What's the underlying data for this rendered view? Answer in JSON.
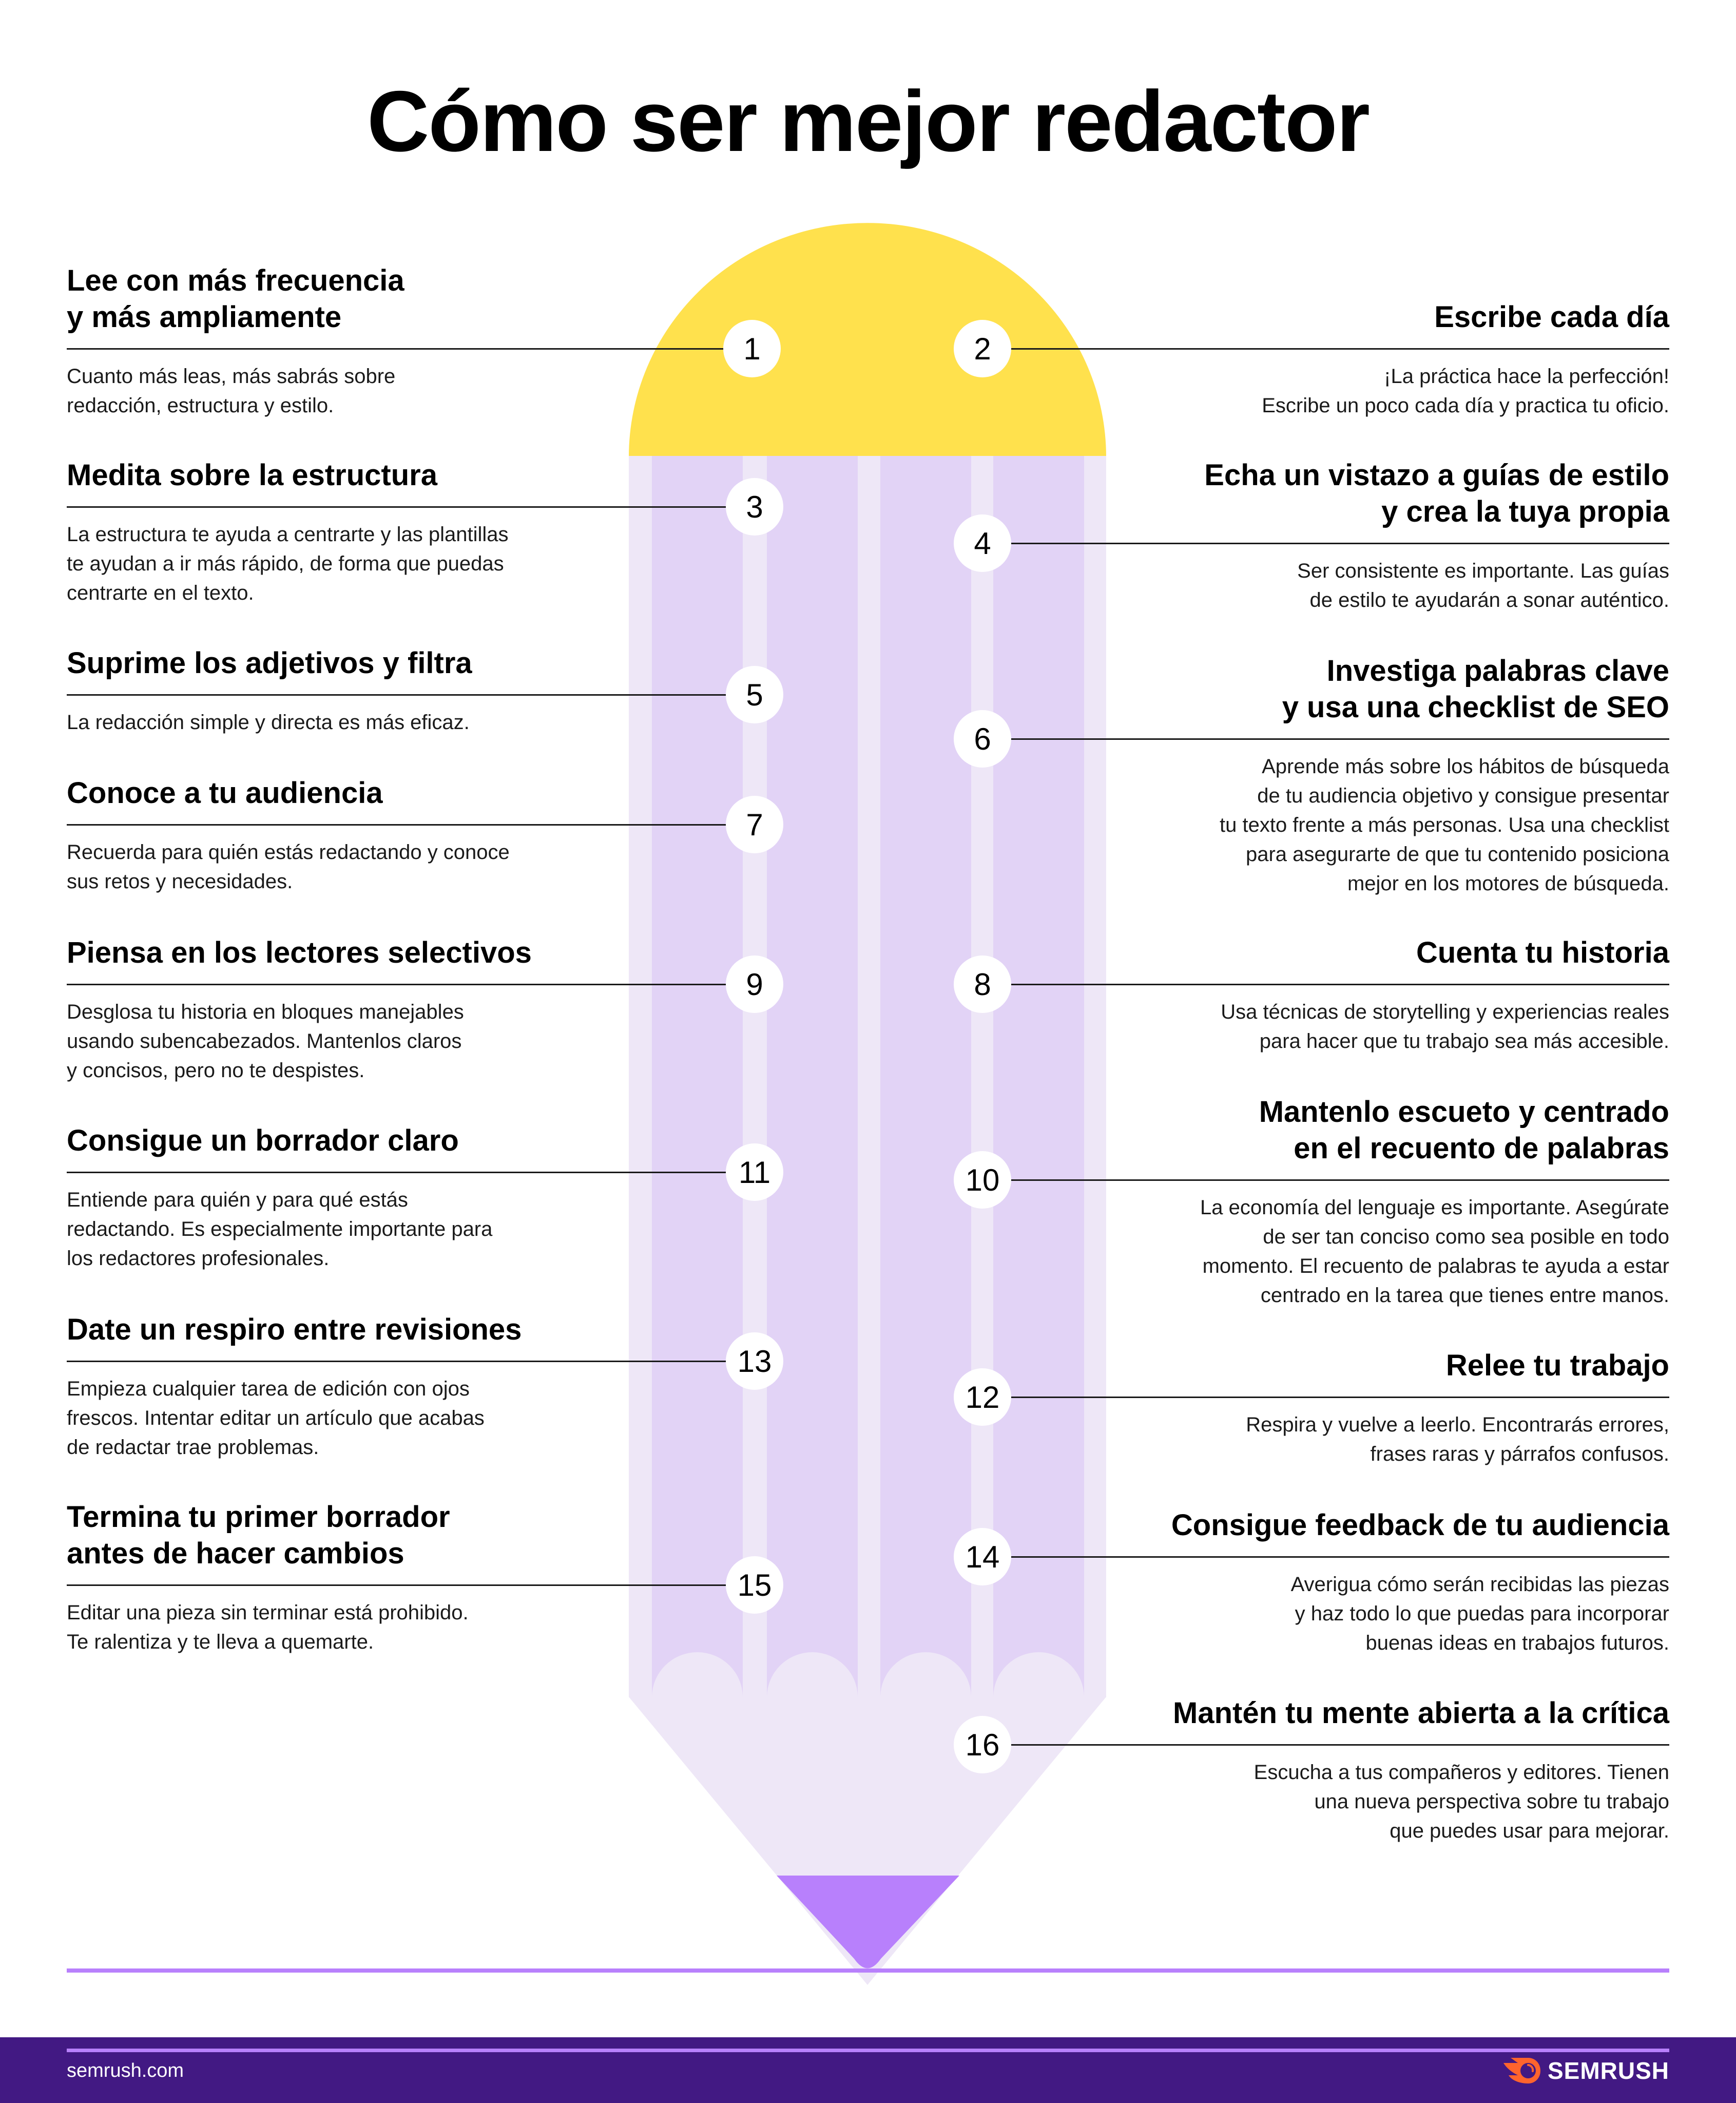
{
  "title": "Cómo ser mejor redactor",
  "colors": {
    "eraser": "#FFE14D",
    "stripe_dark": "#E2D3F6",
    "stripe_light": "#EEE7F7",
    "tip": "#B880FC",
    "footer": "#421983",
    "logo_orange": "#FF642D"
  },
  "left_items": [
    {
      "number": "1",
      "title": "Lee con más frecuencia\ny más ampliamente",
      "desc": "Cuanto más leas, más sabrás sobre\nredacción, estructura y estilo."
    },
    {
      "number": "3",
      "title": "Medita sobre la estructura",
      "desc": "La estructura te ayuda a centrarte y las plantillas\nte ayudan a ir más rápido, de forma que puedas\ncentrarte en el texto."
    },
    {
      "number": "5",
      "title": "Suprime los adjetivos y filtra",
      "desc": "La redacción simple y directa es más eficaz."
    },
    {
      "number": "7",
      "title": "Conoce a tu audiencia",
      "desc": "Recuerda para quién estás redactando y conoce\nsus retos y necesidades."
    },
    {
      "number": "9",
      "title": "Piensa en los lectores selectivos",
      "desc": "Desglosa tu historia en bloques manejables\nusando subencabezados. Mantenlos claros\ny concisos, pero no te despistes."
    },
    {
      "number": "11",
      "title": "Consigue un borrador claro",
      "desc": "Entiende para quién y para qué estás\nredactando. Es especialmente importante para\nlos redactores profesionales."
    },
    {
      "number": "13",
      "title": "Date un respiro entre revisiones",
      "desc": "Empieza cualquier tarea de edición con ojos\nfrescos. Intentar editar un artículo que acabas\nde redactar trae problemas."
    },
    {
      "number": "15",
      "title": "Termina tu primer borrador\nantes de hacer cambios",
      "desc": "Editar una pieza sin terminar está prohibido.\nTe ralentiza y te lleva a quemarte."
    }
  ],
  "right_items": [
    {
      "number": "2",
      "title": "Escribe cada día",
      "desc": "¡La práctica hace la perfección!\nEscribe un poco cada día y practica tu oficio."
    },
    {
      "number": "4",
      "title": "Echa un vistazo a guías de estilo\ny crea la tuya propia",
      "desc": "Ser consistente es importante. Las guías\nde estilo te ayudarán a sonar auténtico."
    },
    {
      "number": "6",
      "title": "Investiga palabras clave\ny usa una checklist de SEO",
      "desc": "Aprende más sobre los hábitos de búsqueda\nde tu audiencia objetivo y consigue presentar\ntu texto frente a más personas. Usa una checklist\npara asegurarte de que tu contenido posiciona\nmejor en los motores de búsqueda."
    },
    {
      "number": "8",
      "title": "Cuenta tu historia",
      "desc": "Usa técnicas de storytelling y experiencias reales\npara hacer que tu trabajo sea más accesible."
    },
    {
      "number": "10",
      "title": "Mantenlo escueto y centrado\nen el recuento de palabras",
      "desc": "La economía del lenguaje es importante. Asegúrate\nde ser tan conciso como sea posible en todo\nmomento. El recuento de palabras te ayuda a estar\ncentrado en la tarea que tienes entre manos."
    },
    {
      "number": "12",
      "title": "Relee tu trabajo",
      "desc": "Respira y vuelve a leerlo. Encontrarás errores,\nfrases raras y párrafos confusos."
    },
    {
      "number": "14",
      "title": "Consigue feedback de tu audiencia",
      "desc": "Averigua cómo serán recibidas las piezas\ny haz todo lo que puedas para incorporar\nbuenas ideas en trabajos futuros."
    },
    {
      "number": "16",
      "title": "Mantén tu mente abierta a la crítica",
      "desc": "Escucha a tus compañeros y editores. Tienen\nuna nueva perspectiva sobre tu trabajo\nque puedes usar para mejorar."
    }
  ],
  "footer": {
    "site": "semrush.com",
    "logo_text": "SEMRUSH",
    "logo_icon": "semrush-fireball-icon"
  }
}
